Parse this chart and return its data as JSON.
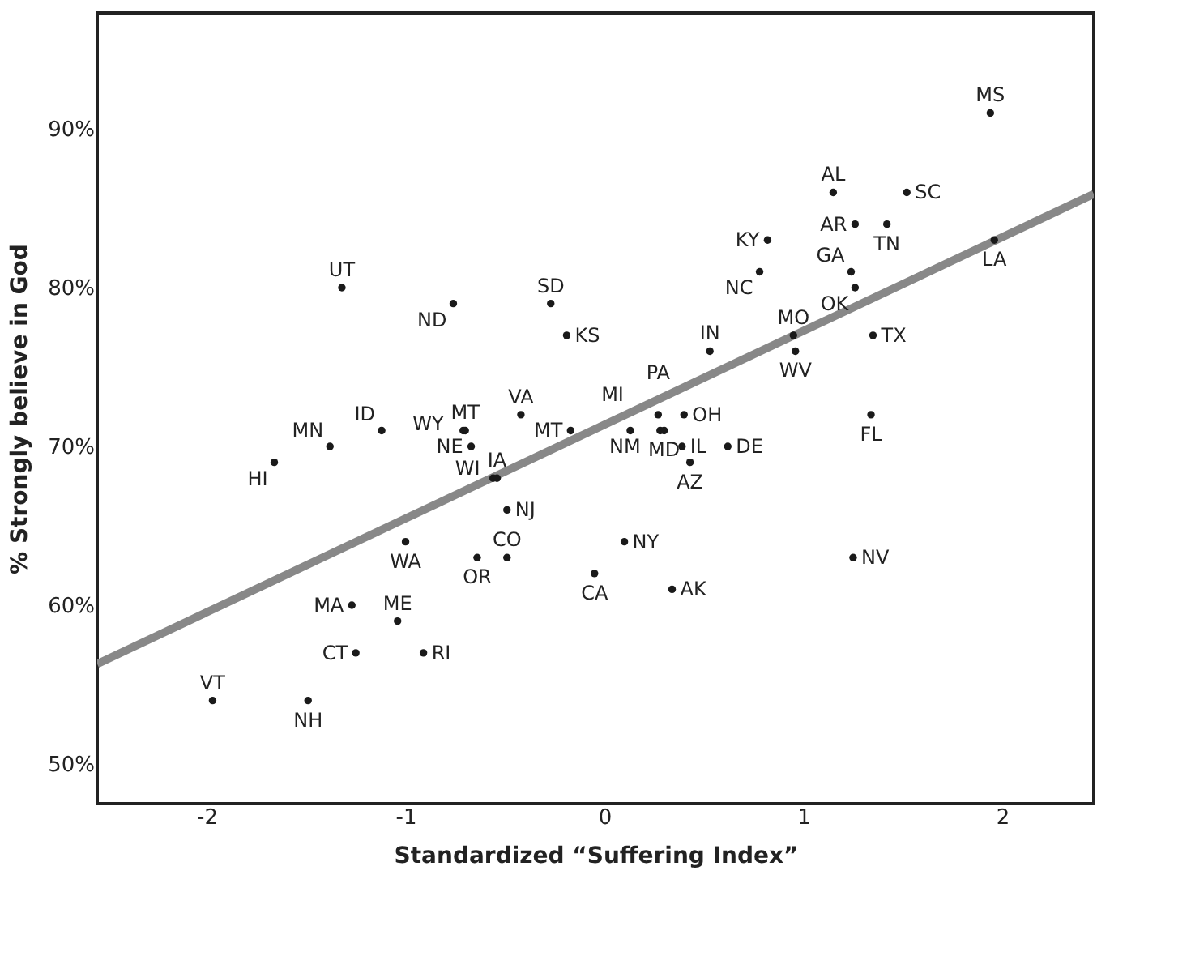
{
  "chart_data": {
    "type": "scatter",
    "xlabel": "Standardized “Suffering Index”",
    "ylabel": "% Strongly believe in God",
    "xlim": [
      -2.55,
      2.46
    ],
    "ylim": [
      47.5,
      97.3
    ],
    "xticks": [
      {
        "value": -2,
        "label": "-2"
      },
      {
        "value": -1,
        "label": "-1"
      },
      {
        "value": 0,
        "label": "0"
      },
      {
        "value": 1,
        "label": "1"
      },
      {
        "value": 2,
        "label": "2"
      }
    ],
    "yticks": [
      {
        "value": 50,
        "label": "50%"
      },
      {
        "value": 60,
        "label": "60%"
      },
      {
        "value": 70,
        "label": "70%"
      },
      {
        "value": 80,
        "label": "80%"
      },
      {
        "value": 90,
        "label": "90%"
      }
    ],
    "grid": false,
    "legend": false,
    "marker": "circle",
    "series": [
      {
        "type": "scatter",
        "color": "#1a1a1a",
        "x": [
          1.94,
          1.15,
          1.52,
          1.26,
          1.42,
          0.82,
          1.96,
          1.24,
          0.78,
          1.26,
          0.95,
          1.35,
          0.96,
          0.53,
          -1.32,
          -0.76,
          -0.27,
          -0.19,
          -0.42,
          -0.7,
          -0.71,
          -1.12,
          -1.38,
          -0.67,
          -1.66,
          -0.56,
          -0.54,
          -0.17,
          0.13,
          0.27,
          0.4,
          0.28,
          0.3,
          0.39,
          0.43,
          0.62,
          -0.49,
          0.1,
          1.34,
          1.25,
          0.34,
          -1.0,
          -0.64,
          -0.49,
          -0.05,
          -1.27,
          -1.04,
          -1.25,
          -0.91,
          -1.97,
          -1.49
        ],
        "values": [
          91,
          86,
          86,
          84,
          84,
          83,
          83,
          81,
          81,
          80,
          77,
          77,
          76,
          76,
          80,
          79,
          79,
          77,
          72,
          71,
          71,
          71,
          70,
          70,
          69,
          68,
          68,
          71,
          71,
          72,
          72,
          71,
          71,
          70,
          69,
          70,
          66,
          64,
          72,
          63,
          61,
          64,
          63,
          63,
          62,
          60,
          59,
          57,
          57,
          54,
          54
        ],
        "value_labels": [
          "MS",
          "AL",
          "SC",
          "AR",
          "TN",
          "KY",
          "LA",
          "GA",
          "NC",
          "OK",
          "MO",
          "TX",
          "WV",
          "IN",
          "UT",
          "ND",
          "SD",
          "KS",
          "VA",
          "MT",
          "WY",
          "ID",
          "MN",
          "NE",
          "HI",
          "WI",
          "IA",
          "MT",
          "MI",
          "PA",
          "OH",
          "NM",
          "MD",
          "IL",
          "AZ",
          "DE",
          "NJ",
          "NY",
          "FL",
          "NV",
          "AK",
          "WA",
          "OR",
          "CO",
          "CA",
          "MA",
          "ME",
          "CT",
          "RI",
          "VT",
          "NH"
        ]
      },
      {
        "type": "line",
        "color": "#888888",
        "line_style": "solid",
        "marker": "none",
        "x": [
          -2.55,
          2.46
        ],
        "values": [
          56.3,
          85.9
        ]
      }
    ]
  }
}
